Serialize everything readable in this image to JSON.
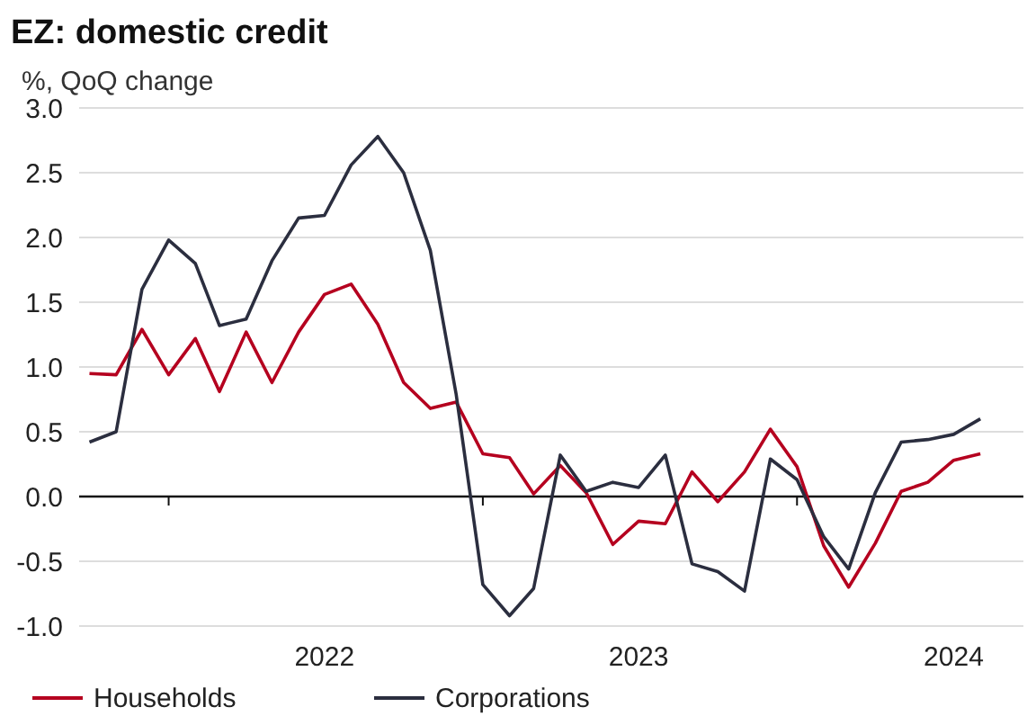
{
  "chart_data": {
    "type": "line",
    "title": "EZ: domestic credit",
    "subtitle": "%,  QoQ change",
    "x": [
      "2021-10",
      "2021-11",
      "2021-12",
      "2022-01",
      "2022-02",
      "2022-03",
      "2022-04",
      "2022-05",
      "2022-06",
      "2022-07",
      "2022-08",
      "2022-09",
      "2022-10",
      "2022-11",
      "2022-12",
      "2023-01",
      "2023-02",
      "2023-03",
      "2023-04",
      "2023-05",
      "2023-06",
      "2023-07",
      "2023-08",
      "2023-09",
      "2023-10",
      "2023-11",
      "2023-12",
      "2024-01",
      "2024-02",
      "2024-03",
      "2024-04",
      "2024-05",
      "2024-06",
      "2024-07",
      "2024-08"
    ],
    "series": [
      {
        "name": "Households",
        "color": "#b5001f",
        "values": [
          0.95,
          0.94,
          1.29,
          0.94,
          1.22,
          0.81,
          1.27,
          0.88,
          1.27,
          1.56,
          1.64,
          1.33,
          0.88,
          0.68,
          0.73,
          0.33,
          0.3,
          0.02,
          0.24,
          0.03,
          -0.37,
          -0.19,
          -0.21,
          0.19,
          -0.04,
          0.19,
          0.52,
          0.23,
          -0.38,
          -0.7,
          -0.36,
          0.04,
          0.11,
          0.28,
          0.33
        ]
      },
      {
        "name": "Corporations",
        "color": "#2b2e3f",
        "values": [
          0.42,
          0.5,
          1.6,
          1.98,
          1.8,
          1.32,
          1.37,
          1.82,
          2.15,
          2.17,
          2.56,
          2.78,
          2.5,
          1.9,
          0.79,
          -0.68,
          -0.92,
          -0.71,
          0.32,
          0.04,
          0.11,
          0.07,
          0.32,
          -0.52,
          -0.58,
          -0.73,
          0.29,
          0.13,
          -0.31,
          -0.56,
          0.03,
          0.42,
          0.44,
          0.48,
          0.6
        ]
      }
    ],
    "xlim": [
      "2021-09-19",
      "2024-09-20"
    ],
    "xticks": [
      {
        "value": "2022-01",
        "label": null
      },
      {
        "value": "2022-07",
        "label": "2022"
      },
      {
        "value": "2023-01",
        "label": null
      },
      {
        "value": "2023-07",
        "label": "2023"
      },
      {
        "value": "2024-01",
        "label": null
      },
      {
        "value": "2024-07",
        "label": "2024"
      }
    ],
    "ylim": [
      -1,
      3
    ],
    "yticks": [
      {
        "value": -1,
        "label": "-1.0"
      },
      -0.5,
      {
        "value": 0,
        "label": "0.0"
      },
      0.5,
      {
        "value": 1,
        "label": "1.0"
      },
      1.5,
      {
        "value": 2,
        "label": "2.0"
      },
      2.5,
      {
        "value": 3,
        "label": "3.0"
      }
    ],
    "grid": "y",
    "legend": "bottom",
    "marker": "none",
    "line_style": "solid"
  }
}
